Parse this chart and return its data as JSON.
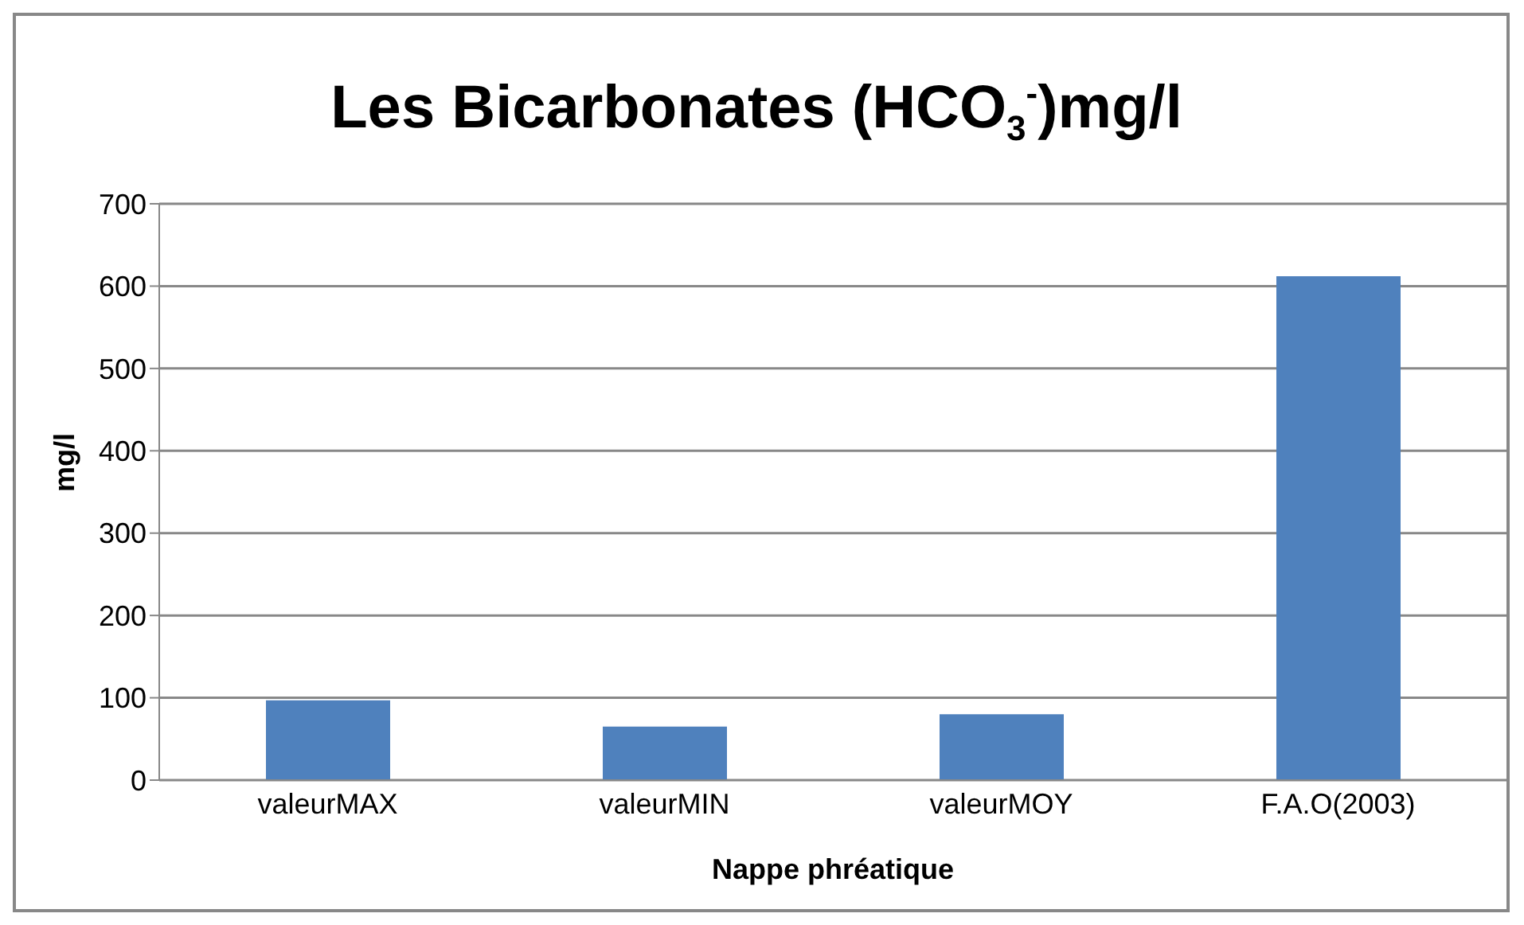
{
  "chart_data": {
    "type": "bar",
    "title": "Les Bicarbonates (HCO$_{3}$$^{-}$)mg/l",
    "xlabel": "Nappe phréatique",
    "ylabel": "mg/l",
    "categories": [
      "valeurMAX",
      "valeurMIN",
      "valeurMOY",
      "F.A.O(2003)"
    ],
    "values": [
      97,
      65,
      80,
      612
    ],
    "color": "#4f81bd",
    "ylim": [
      0,
      700
    ],
    "yticks": [
      0,
      100,
      200,
      300,
      400,
      500,
      600,
      700
    ],
    "grid": "y",
    "legend": false
  }
}
